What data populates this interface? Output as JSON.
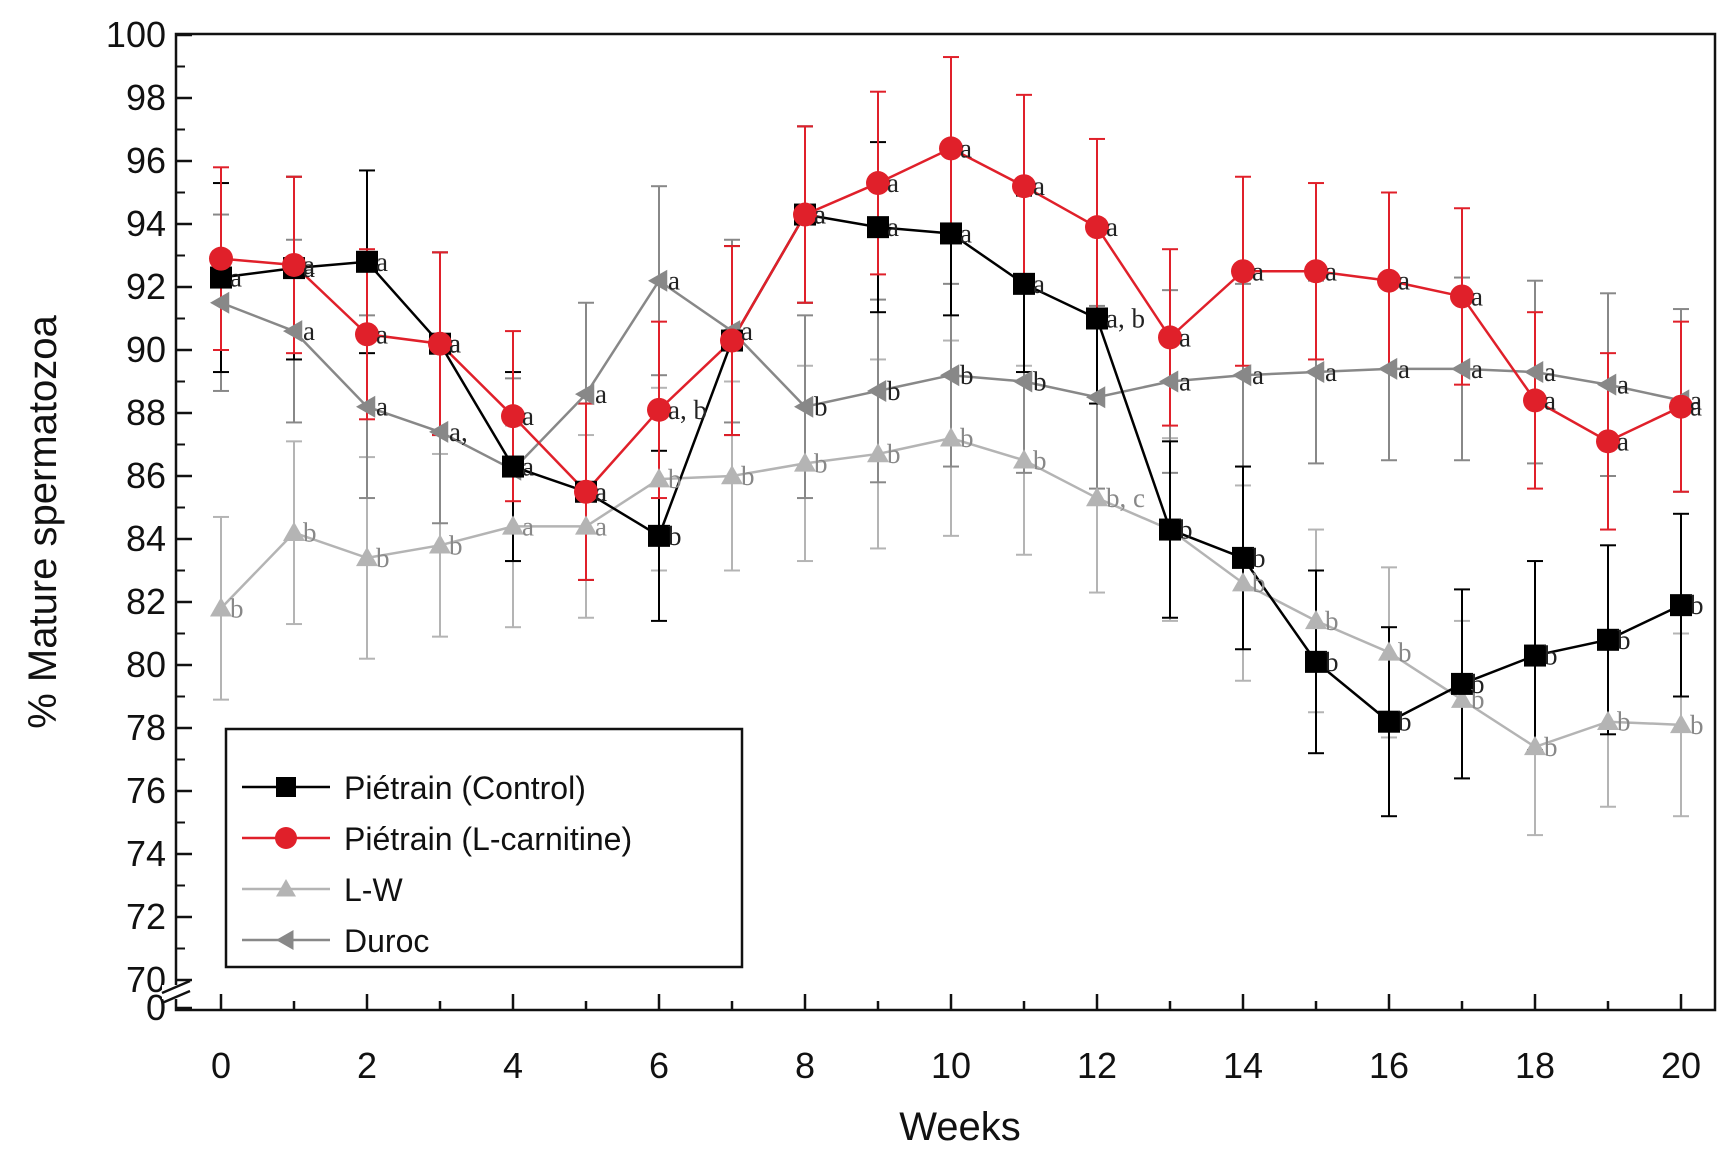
{
  "chart_data": {
    "type": "line",
    "title": "",
    "xlabel": "Weeks",
    "ylabel": "% Mature spermatozoa",
    "x": [
      0,
      1,
      2,
      3,
      4,
      5,
      6,
      7,
      8,
      9,
      10,
      11,
      12,
      13,
      14,
      15,
      16,
      17,
      18,
      19,
      20
    ],
    "xlim": [
      -0.5,
      20.6
    ],
    "ylim_upper": [
      70,
      100
    ],
    "y_axis_break": true,
    "y_ticks": [
      "100",
      "98",
      "96",
      "94",
      "92",
      "90",
      "88",
      "86",
      "84",
      "82",
      "80",
      "78",
      "76",
      "74",
      "72",
      "70",
      "0"
    ],
    "x_ticks": [
      "0",
      "2",
      "4",
      "6",
      "8",
      "10",
      "12",
      "14",
      "16",
      "18",
      "20"
    ],
    "grid": false,
    "legend_position": "bottom-left",
    "series": [
      {
        "name": "Piétrain (Control)",
        "color": "#000000",
        "marker": "square",
        "values": [
          92.3,
          92.6,
          92.8,
          90.2,
          86.3,
          85.5,
          84.1,
          90.3,
          94.3,
          93.9,
          93.7,
          92.1,
          91.0,
          84.3,
          83.4,
          80.1,
          78.2,
          79.4,
          80.3,
          80.8,
          81.9
        ],
        "errors": [
          3.0,
          2.9,
          2.9,
          2.9,
          3.0,
          2.8,
          2.7,
          3.0,
          2.8,
          2.7,
          2.6,
          2.8,
          2.7,
          2.8,
          2.9,
          2.9,
          3.0,
          3.0,
          3.0,
          3.0,
          2.9
        ],
        "letters": [
          "a",
          "a",
          "a",
          "a",
          "a",
          "a",
          "b",
          "",
          "a",
          "a",
          "a",
          "a",
          "a, b",
          "b",
          "b",
          "b",
          "b",
          "b",
          "b",
          "b",
          "b"
        ]
      },
      {
        "name": "Piétrain (L-carnitine)",
        "color": "#e0202a",
        "marker": "circle",
        "values": [
          92.9,
          92.7,
          90.5,
          90.2,
          87.9,
          85.5,
          88.1,
          90.3,
          94.3,
          95.3,
          96.4,
          95.2,
          93.9,
          90.4,
          92.5,
          92.5,
          92.2,
          91.7,
          88.4,
          87.1,
          88.2
        ],
        "errors": [
          2.9,
          2.8,
          2.7,
          2.9,
          2.7,
          2.8,
          2.8,
          3.0,
          2.8,
          2.9,
          2.9,
          2.9,
          2.8,
          2.8,
          3.0,
          2.8,
          2.8,
          2.8,
          2.8,
          2.8,
          2.7
        ],
        "letters": [
          "",
          "a",
          "a",
          "a",
          "a",
          "a",
          "a, b",
          "",
          "a",
          "a",
          "a",
          "a",
          "a",
          "a",
          "a",
          "a",
          "a",
          "a",
          "a",
          "a",
          "a"
        ]
      },
      {
        "name": "L-W",
        "color": "#b4b4b4",
        "marker": "triangle-up",
        "values": [
          81.8,
          84.2,
          83.4,
          83.8,
          84.4,
          84.4,
          85.9,
          86.0,
          86.4,
          86.7,
          87.2,
          86.5,
          85.3,
          84.3,
          82.6,
          81.4,
          80.4,
          78.9,
          77.4,
          78.2,
          78.1
        ],
        "errors": [
          2.9,
          2.9,
          3.2,
          2.9,
          3.2,
          2.9,
          2.9,
          3.0,
          3.1,
          3.0,
          3.1,
          3.0,
          3.0,
          2.9,
          3.1,
          2.9,
          2.7,
          2.5,
          2.8,
          2.7,
          2.9
        ],
        "letters": [
          "b",
          "b",
          "b",
          "b",
          "a",
          "a",
          "b",
          "b",
          "b",
          "b",
          "b",
          "b",
          "b, c",
          "",
          "b",
          "b",
          "b",
          "b",
          "b",
          "b",
          "b"
        ]
      },
      {
        "name": "Duroc",
        "color": "#888888",
        "marker": "triangle-left",
        "values": [
          91.5,
          90.6,
          88.2,
          87.4,
          86.2,
          88.6,
          92.2,
          90.6,
          88.2,
          88.7,
          89.2,
          89.0,
          88.5,
          89.0,
          89.2,
          89.3,
          89.4,
          89.4,
          89.3,
          88.9,
          88.4
        ],
        "errors": [
          2.8,
          2.9,
          2.9,
          2.9,
          2.9,
          2.9,
          3.0,
          2.9,
          2.9,
          2.9,
          2.9,
          2.9,
          2.9,
          2.9,
          2.9,
          2.9,
          2.9,
          2.9,
          2.9,
          2.9,
          2.9
        ],
        "letters": [
          "",
          "a",
          "a",
          "a,",
          "",
          "a",
          "a",
          "a",
          "b",
          "b",
          "b",
          "b",
          "",
          "a",
          "a",
          "a",
          "a",
          "a",
          "a",
          "a",
          "a"
        ]
      }
    ]
  }
}
